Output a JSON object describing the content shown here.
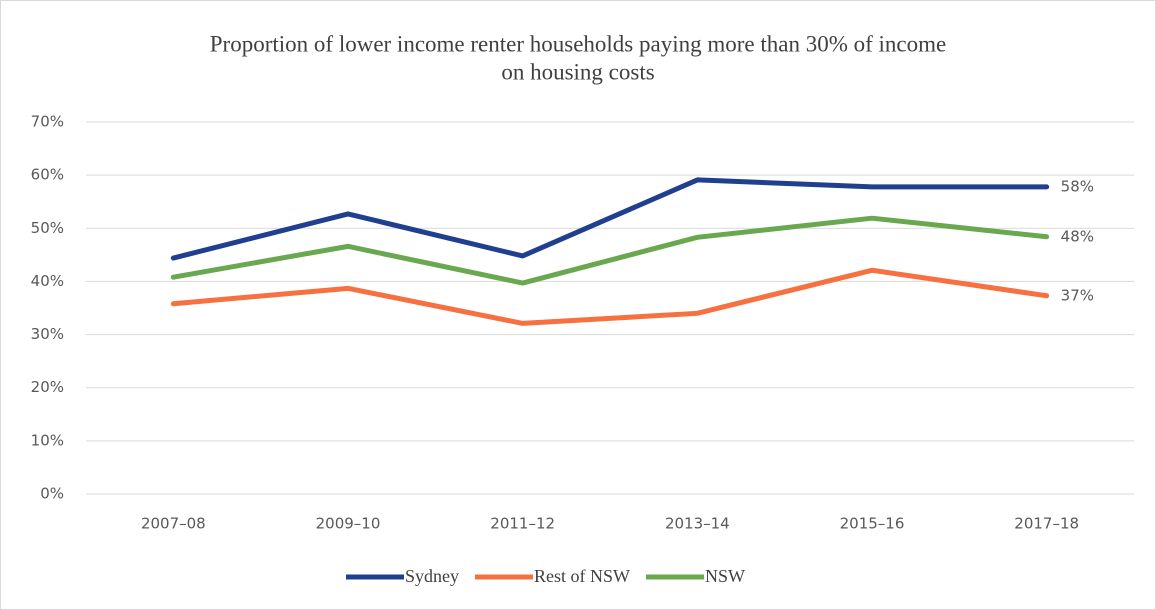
{
  "chart_data": {
    "type": "line",
    "title": [
      "Proportion of lower income renter households paying more than 30% of income",
      "on housing costs"
    ],
    "categories": [
      "2007–08",
      "2009–10",
      "2011–12",
      "2013–14",
      "2015–16",
      "2017–18"
    ],
    "series": [
      {
        "name": "Sydney",
        "color": "#203f8f",
        "values": [
          44.4,
          52.7,
          44.8,
          59.1,
          57.8,
          57.8
        ],
        "value_labels": [
          null,
          null,
          null,
          null,
          null,
          "58%"
        ]
      },
      {
        "name": "Rest of NSW",
        "color": "#f7703f",
        "values": [
          35.8,
          38.7,
          32.1,
          34.0,
          42.1,
          37.3
        ],
        "value_labels": [
          null,
          null,
          null,
          null,
          null,
          "37%"
        ]
      },
      {
        "name": "NSW",
        "color": "#6aa84f",
        "values": [
          40.8,
          46.6,
          39.7,
          48.3,
          51.9,
          48.4
        ],
        "value_labels": [
          null,
          null,
          null,
          null,
          null,
          "48%"
        ]
      }
    ],
    "ylim": [
      0,
      70
    ],
    "yticks": [
      {
        "value": 0,
        "label": "0%"
      },
      {
        "value": 10,
        "label": "10%"
      },
      {
        "value": 20,
        "label": "20%"
      },
      {
        "value": 30,
        "label": "30%"
      },
      {
        "value": 40,
        "label": "40%"
      },
      {
        "value": 50,
        "label": "50%"
      },
      {
        "value": 60,
        "label": "60%"
      },
      {
        "value": 70,
        "label": "70%"
      }
    ],
    "grid": true,
    "legend": "bottom"
  }
}
